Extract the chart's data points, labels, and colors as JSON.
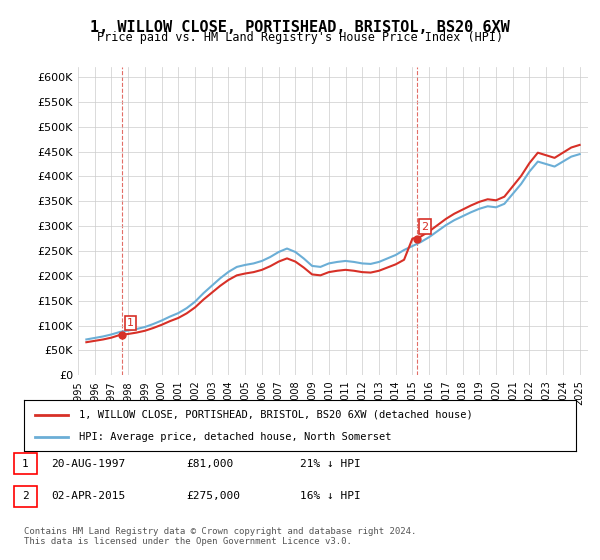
{
  "title": "1, WILLOW CLOSE, PORTISHEAD, BRISTOL, BS20 6XW",
  "subtitle": "Price paid vs. HM Land Registry's House Price Index (HPI)",
  "ylabel": "",
  "xlabel": "",
  "ylim": [
    0,
    620000
  ],
  "yticks": [
    0,
    50000,
    100000,
    150000,
    200000,
    250000,
    300000,
    350000,
    400000,
    450000,
    500000,
    550000,
    600000
  ],
  "ytick_labels": [
    "£0",
    "£50K",
    "£100K",
    "£150K",
    "£200K",
    "£250K",
    "£300K",
    "£350K",
    "£400K",
    "£450K",
    "£500K",
    "£550K",
    "£600K"
  ],
  "sale1_date": 1997.64,
  "sale1_price": 81000,
  "sale1_label": "1",
  "sale2_date": 2015.25,
  "sale2_price": 275000,
  "sale2_label": "2",
  "legend_line1": "1, WILLOW CLOSE, PORTISHEAD, BRISTOL, BS20 6XW (detached house)",
  "legend_line2": "HPI: Average price, detached house, North Somerset",
  "table_row1": [
    "1",
    "20-AUG-1997",
    "£81,000",
    "21% ↓ HPI"
  ],
  "table_row2": [
    "2",
    "02-APR-2015",
    "£275,000",
    "16% ↓ HPI"
  ],
  "footnote": "Contains HM Land Registry data © Crown copyright and database right 2024.\nThis data is licensed under the Open Government Licence v3.0.",
  "hpi_color": "#6baed6",
  "price_color": "#d73027",
  "vline_color": "#d73027",
  "background_color": "#ffffff",
  "grid_color": "#cccccc"
}
